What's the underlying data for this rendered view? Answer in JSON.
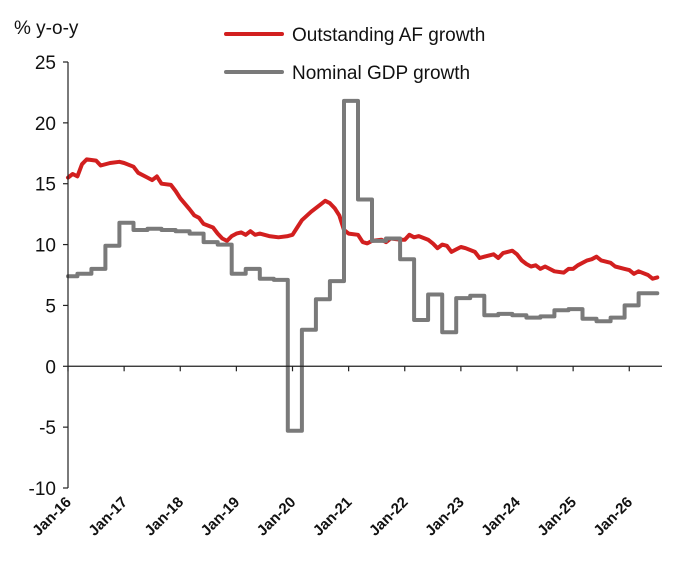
{
  "chart_data": {
    "type": "line",
    "title": "",
    "ylabel": "% y-o-y",
    "xlabel": "",
    "ylim": [
      -10,
      25
    ],
    "yticks": [
      -10,
      -5,
      0,
      5,
      10,
      15,
      20,
      25
    ],
    "xlim": [
      "2016-01",
      "2026-08"
    ],
    "xticks": [
      "Jan-16",
      "Jan-17",
      "Jan-18",
      "Jan-19",
      "Jan-20",
      "Jan-21",
      "Jan-22",
      "Jan-23",
      "Jan-24",
      "Jan-25",
      "Jan-26"
    ],
    "grid": false,
    "legend_position": "top-center",
    "series": [
      {
        "name": "Outstanding AF growth",
        "color": "#d21f1f",
        "points": [
          [
            "2016-01",
            15.5
          ],
          [
            "2016-02",
            15.8
          ],
          [
            "2016-03",
            15.6
          ],
          [
            "2016-04",
            16.6
          ],
          [
            "2016-05",
            17.0
          ],
          [
            "2016-07",
            16.9
          ],
          [
            "2016-08",
            16.5
          ],
          [
            "2016-10",
            16.7
          ],
          [
            "2016-12",
            16.8
          ],
          [
            "2017-01",
            16.7
          ],
          [
            "2017-03",
            16.4
          ],
          [
            "2017-04",
            15.9
          ],
          [
            "2017-06",
            15.5
          ],
          [
            "2017-07",
            15.3
          ],
          [
            "2017-08",
            15.6
          ],
          [
            "2017-09",
            15.0
          ],
          [
            "2017-11",
            14.9
          ],
          [
            "2017-12",
            14.4
          ],
          [
            "2018-01",
            13.8
          ],
          [
            "2018-03",
            12.9
          ],
          [
            "2018-04",
            12.4
          ],
          [
            "2018-05",
            12.2
          ],
          [
            "2018-06",
            11.7
          ],
          [
            "2018-08",
            11.4
          ],
          [
            "2018-09",
            10.9
          ],
          [
            "2018-10",
            10.5
          ],
          [
            "2018-11",
            10.3
          ],
          [
            "2018-12",
            10.7
          ],
          [
            "2019-01",
            10.9
          ],
          [
            "2019-02",
            11.0
          ],
          [
            "2019-03",
            10.8
          ],
          [
            "2019-04",
            11.1
          ],
          [
            "2019-05",
            10.8
          ],
          [
            "2019-06",
            10.9
          ],
          [
            "2019-08",
            10.7
          ],
          [
            "2019-10",
            10.6
          ],
          [
            "2019-12",
            10.7
          ],
          [
            "2020-01",
            10.8
          ],
          [
            "2020-02",
            11.4
          ],
          [
            "2020-03",
            12.0
          ],
          [
            "2020-05",
            12.7
          ],
          [
            "2020-07",
            13.3
          ],
          [
            "2020-08",
            13.6
          ],
          [
            "2020-09",
            13.4
          ],
          [
            "2020-10",
            13.0
          ],
          [
            "2020-11",
            12.4
          ],
          [
            "2020-12",
            11.2
          ],
          [
            "2021-01",
            10.9
          ],
          [
            "2021-03",
            10.8
          ],
          [
            "2021-04",
            10.2
          ],
          [
            "2021-05",
            10.1
          ],
          [
            "2021-06",
            10.3
          ],
          [
            "2021-08",
            10.4
          ],
          [
            "2021-09",
            10.2
          ],
          [
            "2021-10",
            10.5
          ],
          [
            "2021-12",
            10.4
          ],
          [
            "2022-01",
            10.4
          ],
          [
            "2022-02",
            10.8
          ],
          [
            "2022-03",
            10.6
          ],
          [
            "2022-04",
            10.7
          ],
          [
            "2022-06",
            10.4
          ],
          [
            "2022-07",
            10.1
          ],
          [
            "2022-08",
            9.7
          ],
          [
            "2022-09",
            10.0
          ],
          [
            "2022-10",
            9.9
          ],
          [
            "2022-11",
            9.4
          ],
          [
            "2022-12",
            9.6
          ],
          [
            "2023-01",
            9.8
          ],
          [
            "2023-02",
            9.7
          ],
          [
            "2023-04",
            9.4
          ],
          [
            "2023-05",
            8.9
          ],
          [
            "2023-06",
            9.0
          ],
          [
            "2023-08",
            9.2
          ],
          [
            "2023-09",
            8.9
          ],
          [
            "2023-10",
            9.3
          ],
          [
            "2023-12",
            9.5
          ],
          [
            "2024-01",
            9.2
          ],
          [
            "2024-02",
            8.7
          ],
          [
            "2024-03",
            8.4
          ],
          [
            "2024-04",
            8.2
          ],
          [
            "2024-05",
            8.3
          ],
          [
            "2024-06",
            8.0
          ],
          [
            "2024-07",
            8.2
          ],
          [
            "2024-09",
            7.8
          ],
          [
            "2024-11",
            7.7
          ],
          [
            "2024-12",
            8.0
          ],
          [
            "2025-01",
            8.0
          ],
          [
            "2025-02",
            8.3
          ],
          [
            "2025-04",
            8.7
          ],
          [
            "2025-05",
            8.8
          ],
          [
            "2025-06",
            9.0
          ],
          [
            "2025-07",
            8.7
          ],
          [
            "2025-09",
            8.5
          ],
          [
            "2025-10",
            8.2
          ],
          [
            "2025-12",
            8.0
          ],
          [
            "2026-01",
            7.9
          ],
          [
            "2026-02",
            7.6
          ],
          [
            "2026-03",
            7.8
          ],
          [
            "2026-05",
            7.5
          ],
          [
            "2026-06",
            7.2
          ],
          [
            "2026-07",
            7.3
          ]
        ]
      },
      {
        "name": "Nominal GDP growth",
        "color": "#7a7a7a",
        "points": [
          [
            "2016-01",
            7.4
          ],
          [
            "2016-03",
            7.4
          ],
          [
            "2016-03",
            7.6
          ],
          [
            "2016-06",
            7.6
          ],
          [
            "2016-06",
            8.0
          ],
          [
            "2016-09",
            8.0
          ],
          [
            "2016-09",
            9.9
          ],
          [
            "2016-12",
            9.9
          ],
          [
            "2016-12",
            11.8
          ],
          [
            "2017-03",
            11.8
          ],
          [
            "2017-03",
            11.2
          ],
          [
            "2017-06",
            11.2
          ],
          [
            "2017-06",
            11.3
          ],
          [
            "2017-09",
            11.3
          ],
          [
            "2017-09",
            11.2
          ],
          [
            "2017-12",
            11.2
          ],
          [
            "2017-12",
            11.1
          ],
          [
            "2018-03",
            11.1
          ],
          [
            "2018-03",
            10.9
          ],
          [
            "2018-06",
            10.9
          ],
          [
            "2018-06",
            10.2
          ],
          [
            "2018-09",
            10.2
          ],
          [
            "2018-09",
            10.0
          ],
          [
            "2018-12",
            10.0
          ],
          [
            "2018-12",
            7.6
          ],
          [
            "2019-03",
            7.6
          ],
          [
            "2019-03",
            8.0
          ],
          [
            "2019-06",
            8.0
          ],
          [
            "2019-06",
            7.2
          ],
          [
            "2019-09",
            7.2
          ],
          [
            "2019-09",
            7.1
          ],
          [
            "2019-12",
            7.1
          ],
          [
            "2019-12",
            -5.3
          ],
          [
            "2020-03",
            -5.3
          ],
          [
            "2020-03",
            3.0
          ],
          [
            "2020-06",
            3.0
          ],
          [
            "2020-06",
            5.5
          ],
          [
            "2020-09",
            5.5
          ],
          [
            "2020-09",
            7.0
          ],
          [
            "2020-12",
            7.0
          ],
          [
            "2020-12",
            21.8
          ],
          [
            "2021-03",
            21.8
          ],
          [
            "2021-03",
            13.7
          ],
          [
            "2021-06",
            13.7
          ],
          [
            "2021-06",
            10.3
          ],
          [
            "2021-09",
            10.3
          ],
          [
            "2021-09",
            10.5
          ],
          [
            "2021-12",
            10.5
          ],
          [
            "2021-12",
            8.8
          ],
          [
            "2022-03",
            8.8
          ],
          [
            "2022-03",
            3.8
          ],
          [
            "2022-06",
            3.8
          ],
          [
            "2022-06",
            5.9
          ],
          [
            "2022-09",
            5.9
          ],
          [
            "2022-09",
            2.8
          ],
          [
            "2022-12",
            2.8
          ],
          [
            "2022-12",
            5.6
          ],
          [
            "2023-03",
            5.6
          ],
          [
            "2023-03",
            5.8
          ],
          [
            "2023-06",
            5.8
          ],
          [
            "2023-06",
            4.2
          ],
          [
            "2023-09",
            4.2
          ],
          [
            "2023-09",
            4.3
          ],
          [
            "2023-12",
            4.3
          ],
          [
            "2023-12",
            4.2
          ],
          [
            "2024-03",
            4.2
          ],
          [
            "2024-03",
            4.0
          ],
          [
            "2024-06",
            4.0
          ],
          [
            "2024-06",
            4.1
          ],
          [
            "2024-09",
            4.1
          ],
          [
            "2024-09",
            4.6
          ],
          [
            "2024-12",
            4.6
          ],
          [
            "2024-12",
            4.7
          ],
          [
            "2025-03",
            4.7
          ],
          [
            "2025-03",
            3.9
          ],
          [
            "2025-06",
            3.9
          ],
          [
            "2025-06",
            3.7
          ],
          [
            "2025-09",
            3.7
          ],
          [
            "2025-09",
            4.0
          ],
          [
            "2025-12",
            4.0
          ],
          [
            "2025-12",
            5.0
          ],
          [
            "2026-03",
            5.0
          ],
          [
            "2026-03",
            6.0
          ],
          [
            "2026-07",
            6.0
          ]
        ]
      }
    ]
  }
}
